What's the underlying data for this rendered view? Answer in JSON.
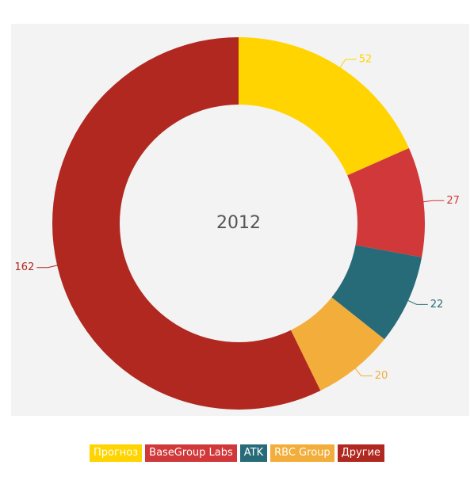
{
  "chart_data": {
    "type": "donut",
    "center_label": "2012",
    "categories": [
      "Прогноз",
      "BaseGroup Labs",
      "ATK",
      "RBC Group",
      "Другие"
    ],
    "values": [
      52,
      27,
      22,
      20,
      162
    ],
    "colors": [
      "#ffd400",
      "#d0383a",
      "#276b78",
      "#f2ad3a",
      "#b0281f"
    ]
  }
}
